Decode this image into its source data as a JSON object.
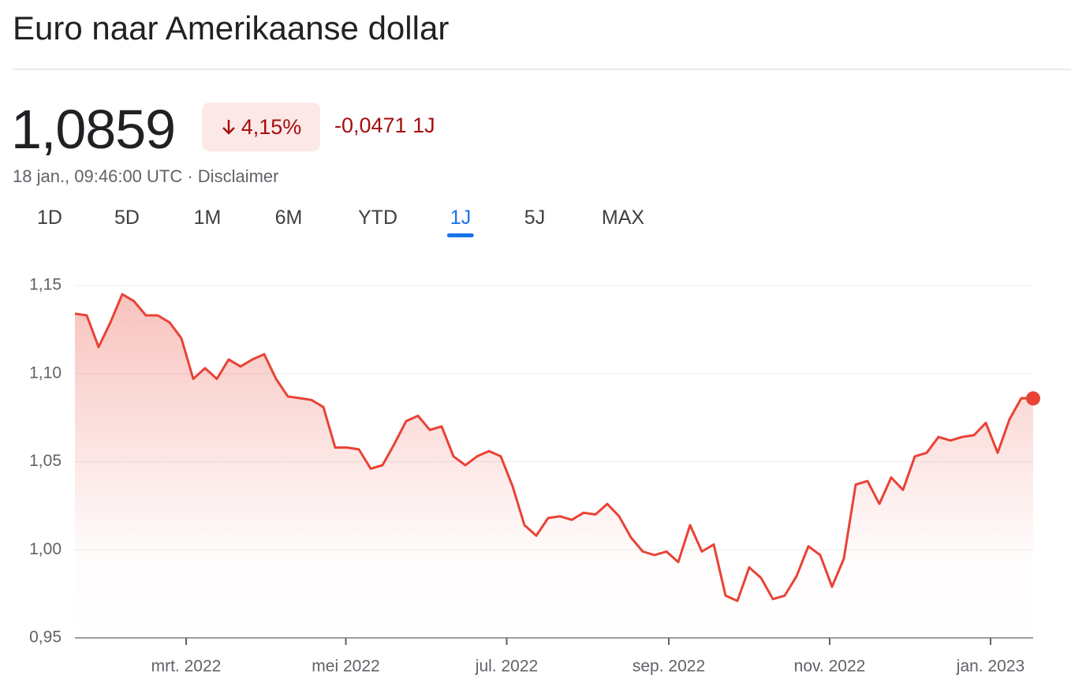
{
  "header": {
    "title": "Euro naar Amerikaanse dollar",
    "price": "1,0859",
    "change_pct": "4,15%",
    "change_abs": "-0,0471 1J",
    "timestamp": "18 jan., 09:46:00 UTC · Disclaimer",
    "tabs": [
      "1D",
      "5D",
      "1M",
      "6M",
      "YTD",
      "1J",
      "5J",
      "MAX"
    ]
  },
  "chart_data": {
    "type": "line",
    "color": "#e94235",
    "grid": true,
    "values": [
      1.134,
      1.133,
      1.115,
      1.129,
      1.145,
      1.141,
      1.133,
      1.133,
      1.129,
      1.12,
      1.097,
      1.103,
      1.097,
      1.108,
      1.104,
      1.108,
      1.111,
      1.097,
      1.087,
      1.086,
      1.085,
      1.081,
      1.058,
      1.058,
      1.057,
      1.046,
      1.048,
      1.06,
      1.073,
      1.076,
      1.068,
      1.07,
      1.053,
      1.048,
      1.053,
      1.056,
      1.053,
      1.036,
      1.014,
      1.008,
      1.018,
      1.019,
      1.017,
      1.021,
      1.02,
      1.026,
      1.019,
      1.007,
      0.999,
      0.997,
      0.999,
      0.993,
      1.014,
      0.999,
      1.003,
      0.974,
      0.971,
      0.99,
      0.984,
      0.972,
      0.974,
      0.985,
      1.002,
      0.997,
      0.979,
      0.995,
      1.037,
      1.039,
      1.026,
      1.041,
      1.034,
      1.053,
      1.055,
      1.064,
      1.062,
      1.064,
      1.065,
      1.072,
      1.055,
      1.074,
      1.086,
      1.0859
    ],
    "xlim": [
      0,
      81
    ],
    "xticks": [
      {
        "value": 9.4,
        "label": "mrt. 2022"
      },
      {
        "value": 22.9,
        "label": "mei 2022"
      },
      {
        "value": 36.5,
        "label": "jul. 2022"
      },
      {
        "value": 50.2,
        "label": "sep. 2022"
      },
      {
        "value": 63.8,
        "label": "nov. 2022"
      },
      {
        "value": 77.4,
        "label": "jan. 2023"
      }
    ],
    "ylim": [
      0.95,
      1.15
    ],
    "yticks": [
      {
        "value": 0.95,
        "label": "0,95"
      },
      {
        "value": 1.0,
        "label": "1,00"
      },
      {
        "value": 1.05,
        "label": "1,05"
      },
      {
        "value": 1.1,
        "label": "1,10"
      },
      {
        "value": 1.15,
        "label": "1,15"
      }
    ]
  }
}
